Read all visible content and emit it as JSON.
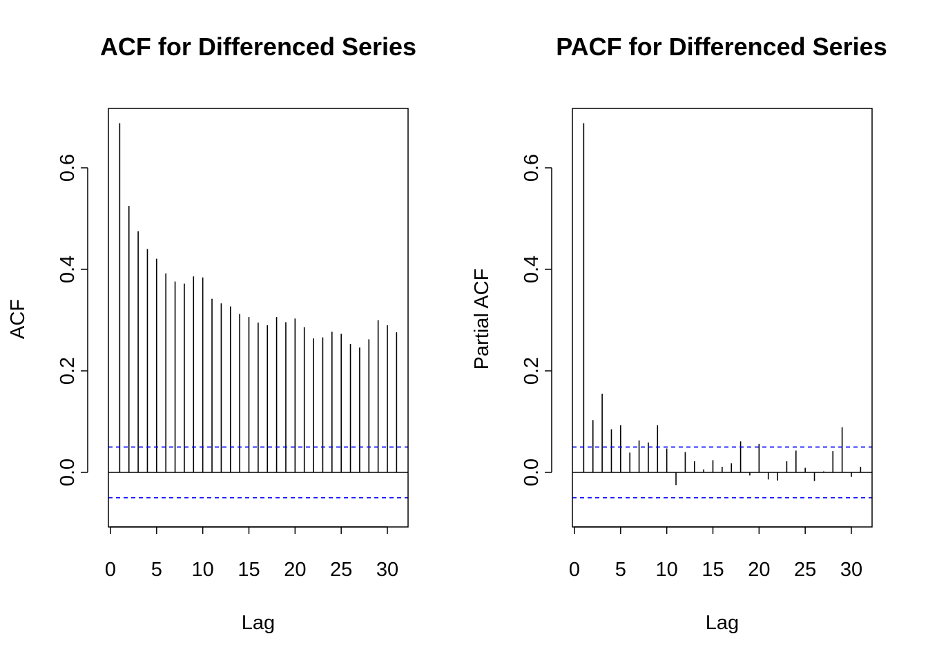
{
  "chart_data": [
    {
      "type": "bar",
      "title": "ACF for Differenced Series",
      "xlabel": "Lag",
      "ylabel": "ACF",
      "xlim": [
        0,
        32
      ],
      "ylim": [
        -0.1,
        0.7
      ],
      "xticks": [
        0,
        5,
        10,
        15,
        20,
        25,
        30
      ],
      "yticks": [
        0.0,
        0.2,
        0.4,
        0.6
      ],
      "ytick_labels": [
        "0.0",
        "0.2",
        "0.4",
        "0.6"
      ],
      "confidence_band": 0.05,
      "lags": [
        1,
        2,
        3,
        4,
        5,
        6,
        7,
        8,
        9,
        10,
        11,
        12,
        13,
        14,
        15,
        16,
        17,
        18,
        19,
        20,
        21,
        22,
        23,
        24,
        25,
        26,
        27,
        28,
        29,
        30,
        31
      ],
      "values": [
        0.688,
        0.525,
        0.475,
        0.44,
        0.421,
        0.392,
        0.376,
        0.372,
        0.386,
        0.384,
        0.342,
        0.333,
        0.327,
        0.312,
        0.306,
        0.295,
        0.29,
        0.306,
        0.296,
        0.303,
        0.286,
        0.264,
        0.266,
        0.277,
        0.273,
        0.253,
        0.246,
        0.262,
        0.3,
        0.29,
        0.276
      ],
      "grid": false,
      "colors": {
        "bars": "#000000",
        "band": "#0000ff",
        "frame": "#000000"
      }
    },
    {
      "type": "bar",
      "title": "PACF for Differenced Series",
      "xlabel": "Lag",
      "ylabel": "Partial ACF",
      "xlim": [
        0,
        32
      ],
      "ylim": [
        -0.1,
        0.7
      ],
      "xticks": [
        0,
        5,
        10,
        15,
        20,
        25,
        30
      ],
      "yticks": [
        0.0,
        0.2,
        0.4,
        0.6
      ],
      "ytick_labels": [
        "0.0",
        "0.2",
        "0.4",
        "0.6"
      ],
      "confidence_band": 0.05,
      "lags": [
        1,
        2,
        3,
        4,
        5,
        6,
        7,
        8,
        9,
        10,
        11,
        12,
        13,
        14,
        15,
        16,
        17,
        18,
        19,
        20,
        21,
        22,
        23,
        24,
        25,
        26,
        27,
        28,
        29,
        30,
        31
      ],
      "values": [
        0.688,
        0.103,
        0.155,
        0.085,
        0.093,
        0.039,
        0.063,
        0.059,
        0.093,
        0.047,
        -0.025,
        0.04,
        0.022,
        0.006,
        0.024,
        0.011,
        0.018,
        0.061,
        -0.006,
        0.056,
        -0.014,
        -0.016,
        0.022,
        0.043,
        0.009,
        -0.017,
        0.002,
        0.042,
        0.089,
        -0.009,
        0.011
      ],
      "grid": false,
      "colors": {
        "bars": "#000000",
        "band": "#0000ff",
        "frame": "#000000"
      }
    }
  ]
}
